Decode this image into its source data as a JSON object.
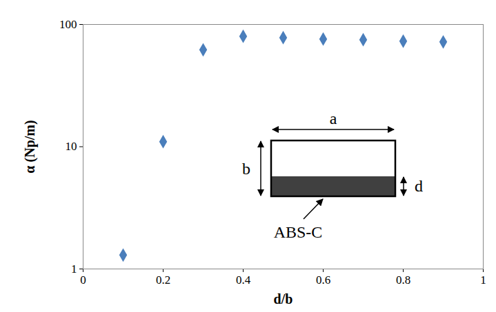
{
  "chart_data": {
    "type": "scatter",
    "x": [
      0.1,
      0.2,
      0.3,
      0.4,
      0.5,
      0.6,
      0.7,
      0.8,
      0.9
    ],
    "values": [
      1.3,
      11,
      62,
      80,
      78,
      76,
      75,
      73,
      72
    ],
    "color": "#4a7ebb",
    "marker": "diamond",
    "xlabel": "d/b",
    "ylabel": "α (Np/m)",
    "xlim": [
      0,
      1
    ],
    "xticks": [
      0,
      0.2,
      0.4,
      0.6,
      0.8,
      1
    ],
    "ylim": [
      1,
      100
    ],
    "yticks": [
      1,
      10,
      100
    ],
    "log": "y",
    "grid": false,
    "annotations": {
      "width_label": "a",
      "height_label": "b",
      "layer_label": "d",
      "material_label": "ABS-C"
    }
  }
}
